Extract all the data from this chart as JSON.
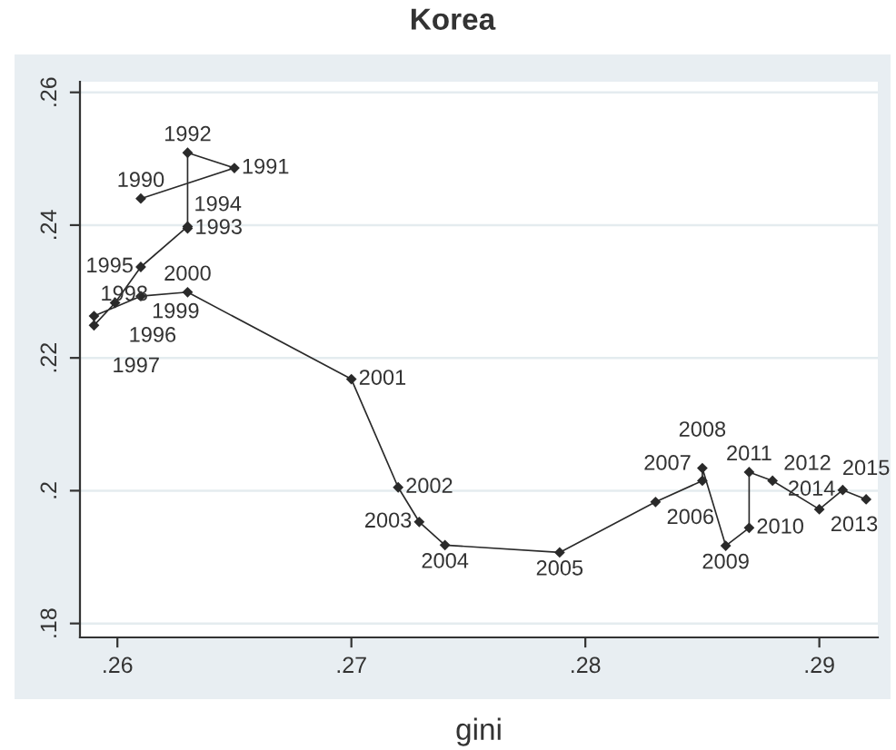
{
  "chart_data": {
    "type": "line",
    "title": "Korea",
    "xlabel": "gini",
    "x": [
      0.261,
      0.265,
      0.263,
      0.263,
      0.263,
      0.261,
      0.2599,
      0.259,
      0.259,
      0.261,
      0.263,
      0.27,
      0.272,
      0.2729,
      0.274,
      0.2789,
      0.283,
      0.285,
      0.285,
      0.286,
      0.287,
      0.287,
      0.288,
      0.29,
      0.291,
      0.292
    ],
    "series": [
      {
        "color": "#2a2a2a",
        "values": [
          0.244,
          0.2486,
          0.2509,
          0.2395,
          0.2398,
          0.2337,
          0.2283,
          0.2249,
          0.2263,
          0.2293,
          0.2299,
          0.2168,
          0.2005,
          0.1953,
          0.1918,
          0.1907,
          0.1983,
          0.2015,
          0.2034,
          0.1917,
          0.1944,
          0.2028,
          0.2015,
          0.1972,
          0.2001,
          0.1987
        ]
      }
    ],
    "annotations": [
      {
        "text": "1990",
        "x": 0.261,
        "y": 0.244
      },
      {
        "text": "1991",
        "x": 0.265,
        "y": 0.2486
      },
      {
        "text": "1992",
        "x": 0.263,
        "y": 0.2509
      },
      {
        "text": "1993",
        "x": 0.263,
        "y": 0.2395
      },
      {
        "text": "1994",
        "x": 0.263,
        "y": 0.2398
      },
      {
        "text": "1995",
        "x": 0.261,
        "y": 0.2337
      },
      {
        "text": "1996",
        "x": 0.2599,
        "y": 0.2283
      },
      {
        "text": "1997",
        "x": 0.259,
        "y": 0.2249
      },
      {
        "text": "1998",
        "x": 0.259,
        "y": 0.2263
      },
      {
        "text": "1999",
        "x": 0.261,
        "y": 0.2293
      },
      {
        "text": "2000",
        "x": 0.263,
        "y": 0.2299
      },
      {
        "text": "2001",
        "x": 0.27,
        "y": 0.2168
      },
      {
        "text": "2002",
        "x": 0.272,
        "y": 0.2005
      },
      {
        "text": "2003",
        "x": 0.2729,
        "y": 0.1953
      },
      {
        "text": "2004",
        "x": 0.274,
        "y": 0.1918
      },
      {
        "text": "2005",
        "x": 0.2789,
        "y": 0.1907
      },
      {
        "text": "2006",
        "x": 0.283,
        "y": 0.1983
      },
      {
        "text": "2007",
        "x": 0.285,
        "y": 0.2015
      },
      {
        "text": "2008",
        "x": 0.285,
        "y": 0.2034
      },
      {
        "text": "2009",
        "x": 0.286,
        "y": 0.1917
      },
      {
        "text": "2010",
        "x": 0.287,
        "y": 0.1944
      },
      {
        "text": "2011",
        "x": 0.287,
        "y": 0.2028
      },
      {
        "text": "2012",
        "x": 0.288,
        "y": 0.2015
      },
      {
        "text": "2013",
        "x": 0.29,
        "y": 0.1972
      },
      {
        "text": "2014",
        "x": 0.291,
        "y": 0.2001
      },
      {
        "text": "2015",
        "x": 0.292,
        "y": 0.1987
      }
    ],
    "xlim": [
      0.2584,
      0.2925
    ],
    "ylim": [
      0.1779,
      0.2616
    ],
    "xticks": [
      {
        "value": 0.26,
        "label": ".26"
      },
      {
        "value": 0.27,
        "label": ".27"
      },
      {
        "value": 0.28,
        "label": ".28"
      },
      {
        "value": 0.29,
        "label": ".29"
      }
    ],
    "yticks": [
      {
        "value": 0.18,
        "label": ".18"
      },
      {
        "value": 0.2,
        "label": ".2"
      },
      {
        "value": 0.22,
        "label": ".22"
      },
      {
        "value": 0.24,
        "label": ".24"
      },
      {
        "value": 0.26,
        "label": ".26"
      }
    ],
    "grid": "y",
    "marker": "diamond"
  }
}
